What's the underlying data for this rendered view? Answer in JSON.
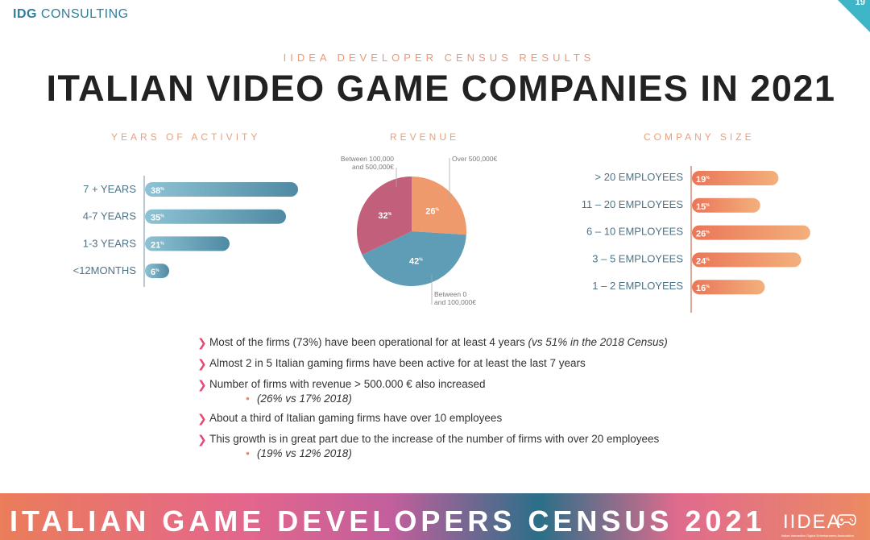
{
  "header": {
    "logo_bold": "IDG",
    "logo_rest": " CONSULTING",
    "page_number": "19",
    "supertitle": "IIDEA DEVELOPER CENSUS RESULTS",
    "title": "ITALIAN VIDEO GAME COMPANIES IN 2021"
  },
  "colors": {
    "teal": "#5e9db5",
    "orange": "#ef8d62",
    "mauve": "#c25f7a",
    "accent": "#e24b75"
  },
  "chart_data": [
    {
      "type": "bar",
      "title": "YEARS OF ACTIVITY",
      "orientation": "horizontal",
      "categories": [
        "7 + YEARS",
        "4-7 YEARS",
        "1-3 YEARS",
        "<12MONTHS"
      ],
      "values": [
        38,
        35,
        21,
        6
      ],
      "value_labels": [
        "38%",
        "35%",
        "21%",
        "6%"
      ],
      "unit": "%"
    },
    {
      "type": "pie",
      "title": "REVENUE",
      "slices": [
        {
          "name": "Over 500,000€",
          "value": 26
        },
        {
          "name": "Between 0 and 100,000€",
          "value": 42
        },
        {
          "name": "Between 100,000 and 500,000€",
          "value": 32
        }
      ],
      "value_labels": [
        "26%",
        "42%",
        "32%"
      ],
      "unit": "%"
    },
    {
      "type": "bar",
      "title": "COMPANY SIZE",
      "orientation": "horizontal",
      "categories": [
        "> 20 EMPLOYEES",
        "11 – 20 EMPLOYEES",
        "6 – 10 EMPLOYEES",
        "3 – 5 EMPLOYEES",
        "1 – 2 EMPLOYEES"
      ],
      "values": [
        19,
        15,
        26,
        24,
        16
      ],
      "value_labels": [
        "19%",
        "15%",
        "26%",
        "24%",
        "16%"
      ],
      "unit": "%"
    }
  ],
  "bullets": [
    {
      "text": "Most of the firms (73%) have been operational for at least 4 years ",
      "italic": "(vs 51% in the 2018 Census)",
      "sub": ""
    },
    {
      "text": "Almost 2 in 5 Italian gaming firms have been active for at least the last 7 years",
      "italic": "",
      "sub": ""
    },
    {
      "text": "Number of firms with revenue > 500.000 € also increased",
      "italic": "",
      "sub": "(26% vs 17% 2018)"
    },
    {
      "text": "About a third of Italian gaming firms have over 10 employees",
      "italic": "",
      "sub": ""
    },
    {
      "text": "This growth is in great part due to the increase of the number of firms with over 20 employees",
      "italic": "",
      "sub": "(19% vs 12% 2018)"
    }
  ],
  "footer": {
    "title": "ITALIAN GAME DEVELOPERS CENSUS 2021",
    "logo": "IIDEA",
    "logo_sub": "Italian Interactive Digital Entertainment Association"
  }
}
